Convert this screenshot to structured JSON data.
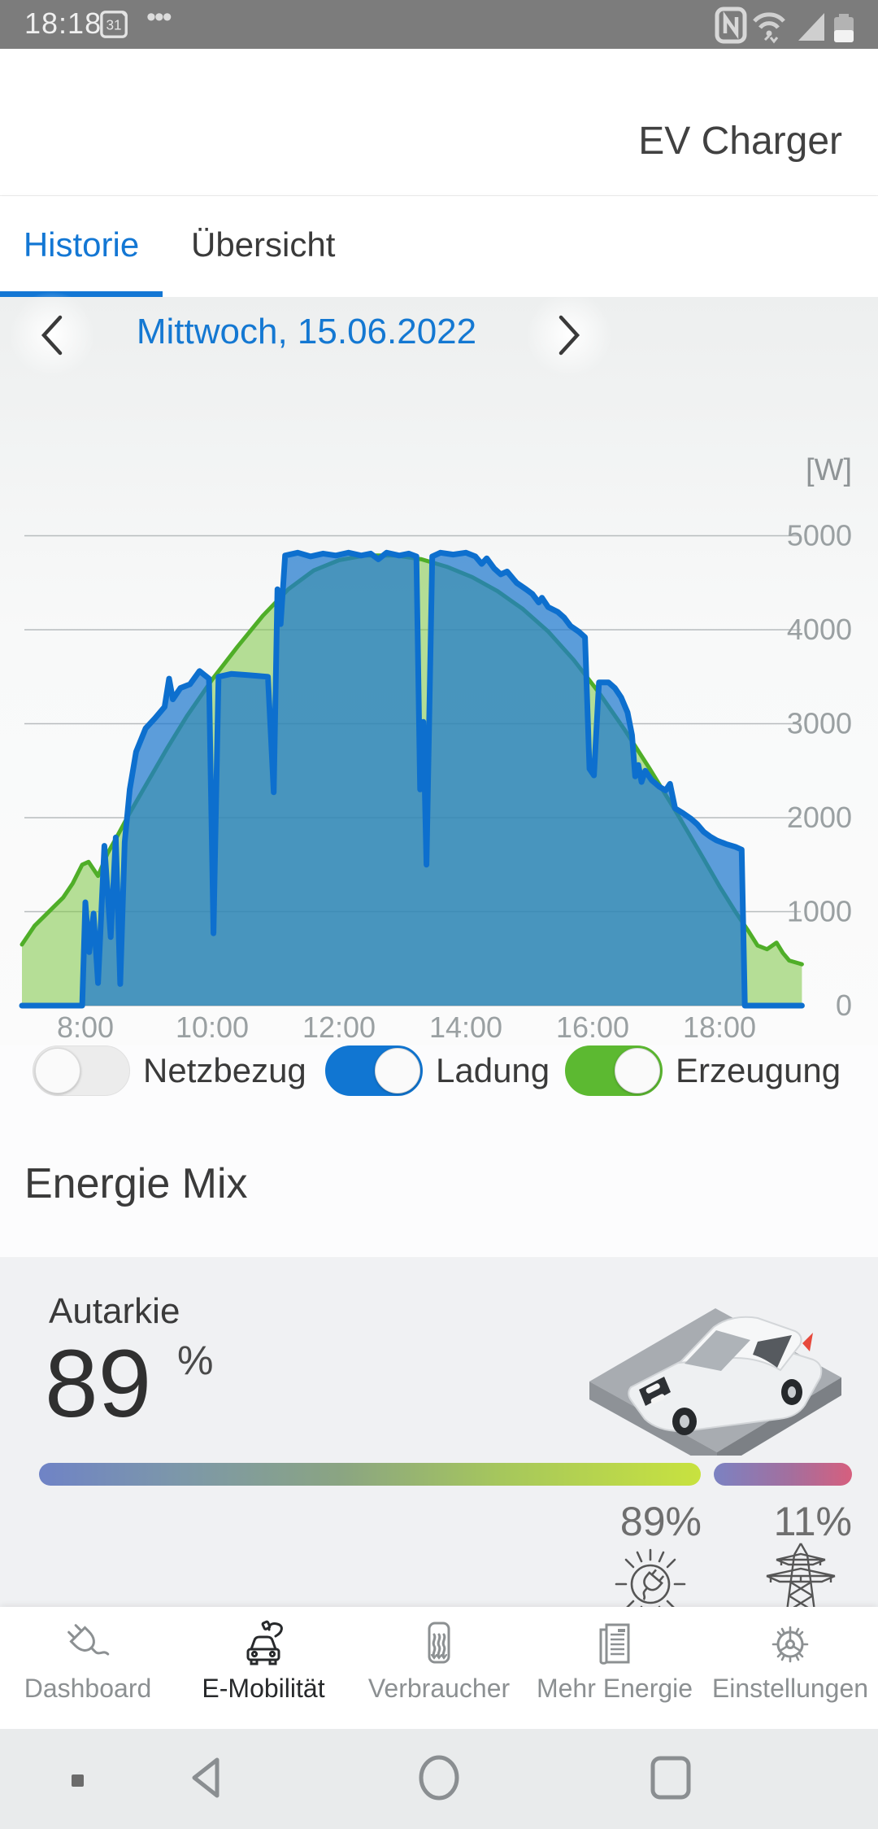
{
  "status_bar": {
    "time": "18:18",
    "calendar_day": "31",
    "more_indicator": "•••"
  },
  "header": {
    "title": "EV Charger"
  },
  "tabs": [
    {
      "label": "Historie"
    },
    {
      "label": "Übersicht"
    }
  ],
  "date_nav": {
    "label": "Mittwoch, 15.06.2022"
  },
  "chart_data": {
    "type": "area",
    "unit_label": "[W]",
    "grid": true,
    "legend_position": "below-as-toggles",
    "x_ticks": [
      {
        "hour": 8,
        "label": "8:00"
      },
      {
        "hour": 10,
        "label": "10:00"
      },
      {
        "hour": 12,
        "label": "12:00"
      },
      {
        "hour": 14,
        "label": "14:00"
      },
      {
        "hour": 16,
        "label": "16:00"
      },
      {
        "hour": 18,
        "label": "18:00"
      }
    ],
    "y_ticks": [
      0,
      1000,
      2000,
      3000,
      4000,
      5000
    ],
    "x_range_hours": [
      7.0,
      19.3
    ],
    "ylim": [
      0,
      5800
    ],
    "series": [
      {
        "name": "Erzeugung",
        "color": "#4fae28",
        "fill": "#7cc744",
        "fill_opacity": 0.55,
        "stroke_width": 5,
        "points": [
          [
            7.0,
            650
          ],
          [
            7.2,
            850
          ],
          [
            7.35,
            950
          ],
          [
            7.5,
            1050
          ],
          [
            7.65,
            1150
          ],
          [
            7.8,
            1300
          ],
          [
            7.95,
            1500
          ],
          [
            8.05,
            1530
          ],
          [
            8.2,
            1380
          ],
          [
            8.35,
            1620
          ],
          [
            8.5,
            1800
          ],
          [
            8.7,
            2050
          ],
          [
            9.0,
            2400
          ],
          [
            9.3,
            2750
          ],
          [
            9.6,
            3080
          ],
          [
            10.0,
            3470
          ],
          [
            10.4,
            3820
          ],
          [
            10.8,
            4150
          ],
          [
            11.2,
            4430
          ],
          [
            11.6,
            4630
          ],
          [
            12.0,
            4740
          ],
          [
            12.4,
            4790
          ],
          [
            12.9,
            4790
          ],
          [
            13.3,
            4750
          ],
          [
            13.7,
            4670
          ],
          [
            14.1,
            4560
          ],
          [
            14.5,
            4410
          ],
          [
            14.9,
            4220
          ],
          [
            15.3,
            3980
          ],
          [
            15.7,
            3680
          ],
          [
            16.1,
            3330
          ],
          [
            16.5,
            2940
          ],
          [
            16.9,
            2520
          ],
          [
            17.3,
            2080
          ],
          [
            17.7,
            1620
          ],
          [
            18.0,
            1270
          ],
          [
            18.25,
            1000
          ],
          [
            18.45,
            800
          ],
          [
            18.6,
            640
          ],
          [
            18.75,
            600
          ],
          [
            18.9,
            670
          ],
          [
            19.0,
            560
          ],
          [
            19.1,
            480
          ],
          [
            19.25,
            450
          ],
          [
            19.3,
            440
          ]
        ]
      },
      {
        "name": "Ladung",
        "color": "#0d6fce",
        "fill": "#1e78cd",
        "fill_opacity": 0.72,
        "stroke_width": 7,
        "points": [
          [
            7.0,
            0
          ],
          [
            7.95,
            0
          ],
          [
            8.0,
            1100
          ],
          [
            8.06,
            570
          ],
          [
            8.13,
            980
          ],
          [
            8.2,
            240
          ],
          [
            8.3,
            1700
          ],
          [
            8.4,
            730
          ],
          [
            8.48,
            1790
          ],
          [
            8.55,
            230
          ],
          [
            8.62,
            1740
          ],
          [
            8.7,
            2300
          ],
          [
            8.8,
            2700
          ],
          [
            8.95,
            2950
          ],
          [
            9.1,
            3060
          ],
          [
            9.25,
            3180
          ],
          [
            9.32,
            3480
          ],
          [
            9.38,
            3260
          ],
          [
            9.5,
            3380
          ],
          [
            9.65,
            3420
          ],
          [
            9.8,
            3560
          ],
          [
            9.95,
            3480
          ],
          [
            10.02,
            770
          ],
          [
            10.1,
            3500
          ],
          [
            10.3,
            3530
          ],
          [
            10.5,
            3520
          ],
          [
            10.7,
            3510
          ],
          [
            10.88,
            3500
          ],
          [
            10.97,
            2270
          ],
          [
            11.03,
            4430
          ],
          [
            11.08,
            4060
          ],
          [
            11.15,
            4790
          ],
          [
            11.35,
            4820
          ],
          [
            11.55,
            4780
          ],
          [
            11.75,
            4810
          ],
          [
            11.95,
            4790
          ],
          [
            12.15,
            4820
          ],
          [
            12.35,
            4790
          ],
          [
            12.5,
            4810
          ],
          [
            12.62,
            4750
          ],
          [
            12.75,
            4820
          ],
          [
            12.95,
            4790
          ],
          [
            13.1,
            4810
          ],
          [
            13.22,
            4780
          ],
          [
            13.28,
            2300
          ],
          [
            13.33,
            3020
          ],
          [
            13.38,
            1500
          ],
          [
            13.47,
            4780
          ],
          [
            13.6,
            4820
          ],
          [
            13.8,
            4800
          ],
          [
            14.0,
            4820
          ],
          [
            14.15,
            4780
          ],
          [
            14.25,
            4700
          ],
          [
            14.33,
            4760
          ],
          [
            14.45,
            4650
          ],
          [
            14.55,
            4590
          ],
          [
            14.65,
            4620
          ],
          [
            14.8,
            4500
          ],
          [
            14.95,
            4430
          ],
          [
            15.05,
            4380
          ],
          [
            15.15,
            4290
          ],
          [
            15.2,
            4340
          ],
          [
            15.3,
            4240
          ],
          [
            15.45,
            4190
          ],
          [
            15.55,
            4130
          ],
          [
            15.65,
            4040
          ],
          [
            15.78,
            3980
          ],
          [
            15.88,
            3920
          ],
          [
            15.95,
            2520
          ],
          [
            16.02,
            2450
          ],
          [
            16.1,
            3440
          ],
          [
            16.25,
            3440
          ],
          [
            16.35,
            3380
          ],
          [
            16.45,
            3280
          ],
          [
            16.55,
            3120
          ],
          [
            16.62,
            2880
          ],
          [
            16.67,
            2440
          ],
          [
            16.72,
            2560
          ],
          [
            16.77,
            2380
          ],
          [
            16.83,
            2500
          ],
          [
            16.93,
            2400
          ],
          [
            17.05,
            2330
          ],
          [
            17.15,
            2290
          ],
          [
            17.22,
            2360
          ],
          [
            17.3,
            2100
          ],
          [
            17.42,
            2050
          ],
          [
            17.55,
            1990
          ],
          [
            17.65,
            1930
          ],
          [
            17.75,
            1850
          ],
          [
            17.85,
            1800
          ],
          [
            17.95,
            1760
          ],
          [
            18.1,
            1720
          ],
          [
            18.25,
            1690
          ],
          [
            18.35,
            1660
          ],
          [
            18.4,
            0
          ],
          [
            19.3,
            0
          ]
        ]
      }
    ]
  },
  "legend_toggles": [
    {
      "label": "Netzbezug",
      "on": false,
      "color": "#ececec"
    },
    {
      "label": "Ladung",
      "on": true,
      "color": "#1176d2"
    },
    {
      "label": "Erzeugung",
      "on": true,
      "color": "#5cb931"
    }
  ],
  "energy_mix": {
    "section_title": "Energie Mix",
    "autarkie_label": "Autarkie",
    "autarkie_value": "89",
    "autarkie_unit": "%",
    "solar_share_label": "89%",
    "grid_share_label": "11%",
    "solar_bar_percent": 89,
    "grid_bar_percent": 11
  },
  "bottom_nav": {
    "items": [
      {
        "label": "Dashboard",
        "icon": "plug-icon",
        "active": false
      },
      {
        "label": "E-Mobilität",
        "icon": "ev-car-icon",
        "active": true
      },
      {
        "label": "Verbraucher",
        "icon": "heater-icon",
        "active": false
      },
      {
        "label": "Mehr Energie",
        "icon": "news-icon",
        "active": false
      },
      {
        "label": "Einstellungen",
        "icon": "gear-icon",
        "active": false
      }
    ]
  }
}
